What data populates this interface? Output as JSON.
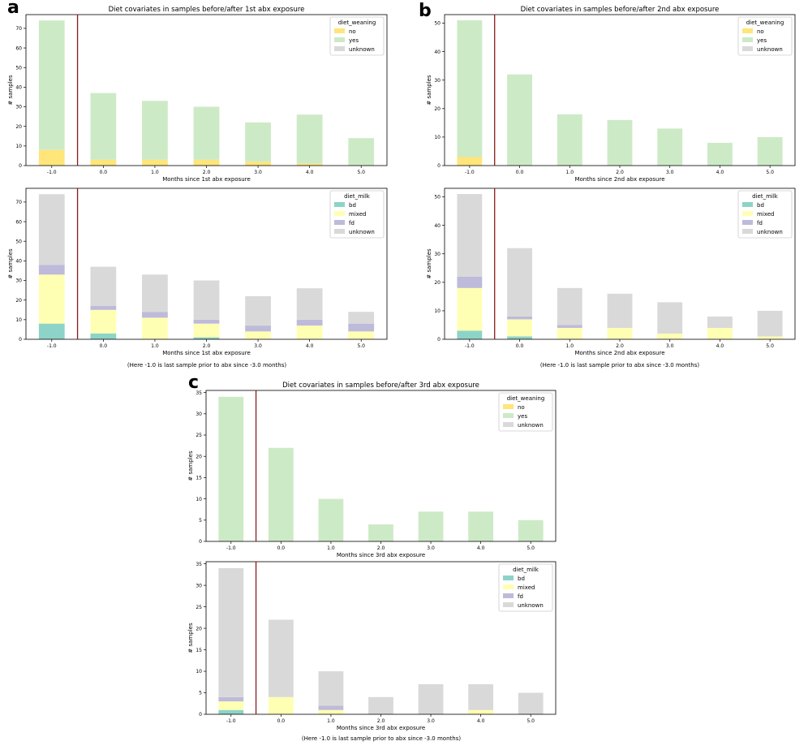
{
  "panels": [
    {
      "letter": "a",
      "note": "(Here -1.0 is last sample prior to abx since -3.0 months)"
    },
    {
      "letter": "b",
      "note": "(Here -1.0 is last sample prior to abx since -3.0 months)"
    },
    {
      "letter": "c",
      "note": "(Here -1.0 is last sample prior to abx since -3.0 months)"
    }
  ],
  "colors": {
    "no": "#ffe57a",
    "yes": "#cdeac6",
    "unknown": "#d9d9d9",
    "bd": "#8dd3c7",
    "mixed": "#ffffb3",
    "fd": "#bebada",
    "vline": "#8b1a1a"
  },
  "chart_data": [
    {
      "type": "bar",
      "id": "a-top",
      "stacked": true,
      "title": "Diet covariates in samples before/after 1st abx exposure",
      "xlabel": "Months since 1st abx exposure",
      "ylabel": "# samples",
      "categories": [
        "-1.0",
        "0.0",
        "1.0",
        "2.0",
        "3.0",
        "4.0",
        "5.0"
      ],
      "ylim": [
        0,
        77
      ],
      "yticks": [
        0,
        10,
        20,
        30,
        40,
        50,
        60,
        70
      ],
      "legend_title": "diet_weaning",
      "legend_labels": [
        "no",
        "yes",
        "unknown"
      ],
      "legend_position": "top-right",
      "series": [
        {
          "name": "no",
          "values": [
            8,
            3,
            3,
            3,
            2,
            1,
            0
          ]
        },
        {
          "name": "yes",
          "values": [
            66,
            34,
            30,
            27,
            20,
            25,
            14
          ]
        },
        {
          "name": "unknown",
          "values": [
            0,
            0,
            0,
            0,
            0,
            0,
            0
          ]
        }
      ],
      "vline_after_index": 0
    },
    {
      "type": "bar",
      "id": "a-bottom",
      "stacked": true,
      "title": "",
      "xlabel": "Months since 1st abx exposure",
      "ylabel": "# samples",
      "categories": [
        "-1.0",
        "0.0",
        "1.0",
        "2.0",
        "3.0",
        "4.0",
        "5.0"
      ],
      "ylim": [
        0,
        77
      ],
      "yticks": [
        0,
        10,
        20,
        30,
        40,
        50,
        60,
        70
      ],
      "legend_title": "diet_milk",
      "legend_labels": [
        "bd",
        "mixed",
        "fd",
        "unknown"
      ],
      "legend_position": "top-right",
      "series": [
        {
          "name": "bd",
          "values": [
            8,
            3,
            0,
            1,
            0,
            0,
            0
          ]
        },
        {
          "name": "mixed",
          "values": [
            25,
            12,
            11,
            7,
            4,
            7,
            4
          ]
        },
        {
          "name": "fd",
          "values": [
            5,
            2,
            3,
            2,
            3,
            3,
            4
          ]
        },
        {
          "name": "unknown",
          "values": [
            36,
            20,
            19,
            20,
            15,
            16,
            6
          ]
        }
      ],
      "vline_after_index": 0
    },
    {
      "type": "bar",
      "id": "b-top",
      "stacked": true,
      "title": "Diet covariates in samples before/after 2nd abx exposure",
      "xlabel": "Months since 2nd abx exposure",
      "ylabel": "# samples",
      "categories": [
        "-1.0",
        "0.0",
        "1.0",
        "2.0",
        "3.0",
        "4.0",
        "5.0"
      ],
      "ylim": [
        0,
        53
      ],
      "yticks": [
        0,
        10,
        20,
        30,
        40,
        50
      ],
      "legend_title": "diet_weaning",
      "legend_labels": [
        "no",
        "yes",
        "unknown"
      ],
      "legend_position": "top-right",
      "series": [
        {
          "name": "no",
          "values": [
            3,
            0,
            0,
            0,
            0,
            0,
            0
          ]
        },
        {
          "name": "yes",
          "values": [
            48,
            32,
            18,
            16,
            13,
            8,
            10
          ]
        },
        {
          "name": "unknown",
          "values": [
            0,
            0,
            0,
            0,
            0,
            0,
            0
          ]
        }
      ],
      "vline_after_index": 0
    },
    {
      "type": "bar",
      "id": "b-bottom",
      "stacked": true,
      "title": "",
      "xlabel": "Months since 2nd abx exposure",
      "ylabel": "# samples",
      "categories": [
        "-1.0",
        "0.0",
        "1.0",
        "2.0",
        "3.0",
        "4.0",
        "5.0"
      ],
      "ylim": [
        0,
        53
      ],
      "yticks": [
        0,
        10,
        20,
        30,
        40,
        50
      ],
      "legend_title": "diet_milk",
      "legend_labels": [
        "bd",
        "mixed",
        "fd",
        "unknown"
      ],
      "legend_position": "top-right",
      "series": [
        {
          "name": "bd",
          "values": [
            3,
            1,
            0,
            0,
            0,
            0,
            0
          ]
        },
        {
          "name": "mixed",
          "values": [
            15,
            6,
            4,
            4,
            2,
            4,
            1
          ]
        },
        {
          "name": "fd",
          "values": [
            4,
            1,
            1,
            0,
            0,
            0,
            0
          ]
        },
        {
          "name": "unknown",
          "values": [
            29,
            24,
            13,
            12,
            11,
            4,
            9
          ]
        }
      ],
      "vline_after_index": 0
    },
    {
      "type": "bar",
      "id": "c-top",
      "stacked": true,
      "title": "Diet covariates in samples before/after 3rd abx exposure",
      "xlabel": "Months since 3rd abx exposure",
      "ylabel": "# samples",
      "categories": [
        "-1.0",
        "0.0",
        "1.0",
        "2.0",
        "3.0",
        "4.0",
        "5.0"
      ],
      "ylim": [
        0,
        35.5
      ],
      "yticks": [
        0,
        5,
        10,
        15,
        20,
        25,
        30,
        35
      ],
      "legend_title": "diet_weaning",
      "legend_labels": [
        "no",
        "yes",
        "unknown"
      ],
      "legend_position": "top-right",
      "series": [
        {
          "name": "no",
          "values": [
            0,
            0,
            0,
            0,
            0,
            0,
            0
          ]
        },
        {
          "name": "yes",
          "values": [
            34,
            22,
            10,
            4,
            7,
            7,
            5
          ]
        },
        {
          "name": "unknown",
          "values": [
            0,
            0,
            0,
            0,
            0,
            0,
            0
          ]
        }
      ],
      "vline_after_index": 0
    },
    {
      "type": "bar",
      "id": "c-bottom",
      "stacked": true,
      "title": "",
      "xlabel": "Months since 3rd abx exposure",
      "ylabel": "# samples",
      "categories": [
        "-1.0",
        "0.0",
        "1.0",
        "2.0",
        "3.0",
        "4.0",
        "5.0"
      ],
      "ylim": [
        0,
        35.5
      ],
      "yticks": [
        0,
        5,
        10,
        15,
        20,
        25,
        30,
        35
      ],
      "legend_title": "diet_milk",
      "legend_labels": [
        "bd",
        "mixed",
        "fd",
        "unknown"
      ],
      "legend_position": "top-right",
      "series": [
        {
          "name": "bd",
          "values": [
            1,
            0,
            0,
            0,
            0,
            0,
            0
          ]
        },
        {
          "name": "mixed",
          "values": [
            2,
            4,
            1,
            0,
            0,
            1,
            0
          ]
        },
        {
          "name": "fd",
          "values": [
            1,
            0,
            1,
            0,
            0,
            0,
            0
          ]
        },
        {
          "name": "unknown",
          "values": [
            30,
            18,
            8,
            4,
            7,
            6,
            5
          ]
        }
      ],
      "vline_after_index": 0
    }
  ]
}
